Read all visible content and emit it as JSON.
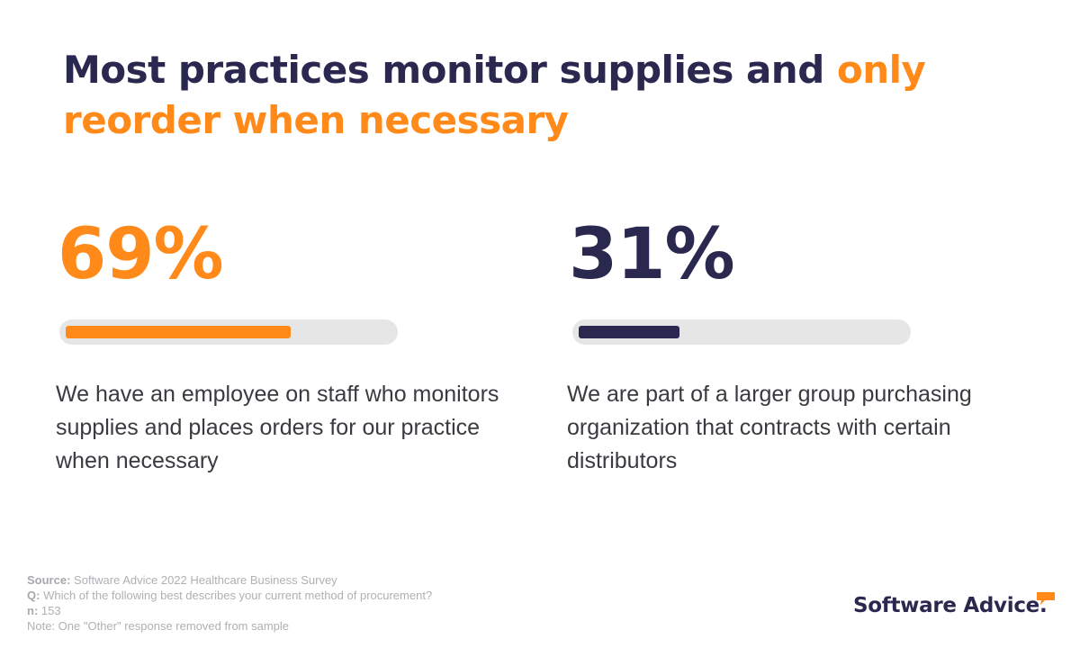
{
  "title": {
    "main": "Most practices monitor supplies and ",
    "accent": "only reorder when necessary"
  },
  "colors": {
    "orange": "#ff8a1a",
    "navy": "#2b2850",
    "track": "#e6e6e6"
  },
  "chart_data": {
    "type": "bar",
    "title": "Most practices monitor supplies and only reorder when necessary",
    "categories": [
      "We have an employee on staff who monitors supplies and places orders for our practice when necessary",
      "We are part of a larger group purchasing organization that contracts with certain distributors"
    ],
    "values": [
      69,
      31
    ],
    "labels": [
      "69%",
      "31%"
    ],
    "unit": "%",
    "ylim": [
      0,
      100
    ]
  },
  "footer": {
    "source_label": "Source:",
    "source_text": " Software Advice 2022 Healthcare Business Survey",
    "q_label": "Q:",
    "q_text": " Which of the following best describes your current method of procurement?",
    "n_label": "n:",
    "n_text": " 153",
    "note": "Note: One \"Other\" response removed from sample"
  },
  "logo": {
    "text": "Software Advice."
  }
}
